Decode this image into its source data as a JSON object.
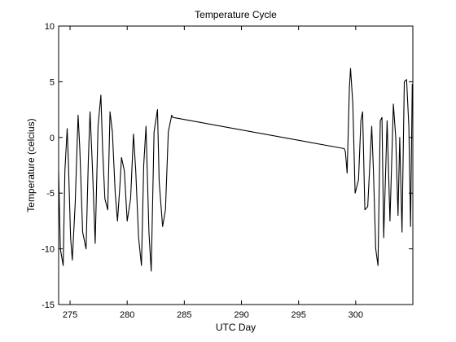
{
  "chart_data": {
    "type": "line",
    "title": "Temperature Cycle",
    "xlabel": "UTC Day",
    "ylabel": "Temperature (celcius)",
    "xlim": [
      274,
      305
    ],
    "ylim": [
      -15,
      10
    ],
    "xticks": [
      275,
      280,
      285,
      290,
      295,
      300
    ],
    "yticks": [
      -15,
      -10,
      -5,
      0,
      5,
      10
    ],
    "grid": false,
    "legend": "none",
    "line_color": "#000000",
    "series": [
      {
        "x": [
          274.0,
          274.15,
          274.4,
          274.55,
          274.75,
          274.85,
          275.05,
          275.2,
          275.45,
          275.7,
          275.85,
          276.1,
          276.4,
          276.6,
          276.75,
          276.95,
          277.2,
          277.45,
          277.7,
          277.85,
          278.05,
          278.3,
          278.5,
          278.7,
          278.95,
          279.15,
          279.35,
          279.5,
          279.75,
          280.0,
          280.3,
          280.55,
          280.75,
          281.0,
          281.25,
          281.45,
          281.65,
          281.9,
          282.1,
          282.35,
          282.65,
          282.8,
          283.1,
          283.35,
          283.6,
          283.8,
          283.9,
          284.0,
          299.0,
          299.1,
          299.25,
          299.45,
          299.55,
          299.75,
          299.95,
          300.25,
          300.45,
          300.6,
          300.8,
          301.05,
          301.4,
          301.55,
          301.75,
          301.95,
          302.15,
          302.3,
          302.45,
          302.75,
          303.0,
          303.3,
          303.5,
          303.7,
          303.85,
          304.05,
          304.25,
          304.45,
          304.65,
          304.8,
          304.95
        ],
        "y": [
          -3.0,
          -10.0,
          -11.5,
          -3.0,
          0.8,
          -2.0,
          -9.0,
          -11.0,
          -6.0,
          2.0,
          -1.0,
          -8.5,
          -10.0,
          -2.0,
          2.3,
          -2.5,
          -9.5,
          1.0,
          3.8,
          -1.0,
          -5.5,
          -6.5,
          2.3,
          0.5,
          -5.0,
          -7.5,
          -4.5,
          -1.8,
          -3.0,
          -7.5,
          -5.5,
          0.3,
          -3.0,
          -9.0,
          -11.5,
          -2.5,
          1.0,
          -8.5,
          -12.0,
          0.5,
          2.5,
          -4.0,
          -8.0,
          -6.5,
          0.5,
          1.5,
          2.0,
          1.8,
          -1.0,
          -1.3,
          -3.2,
          4.5,
          6.2,
          3.0,
          -5.0,
          -3.8,
          1.5,
          2.3,
          -6.5,
          -6.2,
          1.0,
          -3.0,
          -10.0,
          -11.5,
          1.5,
          1.8,
          -9.0,
          1.5,
          -7.5,
          3.0,
          0.0,
          -7.0,
          0.0,
          -8.5,
          5.0,
          5.2,
          1.0,
          -8.0,
          4.8
        ]
      }
    ]
  }
}
